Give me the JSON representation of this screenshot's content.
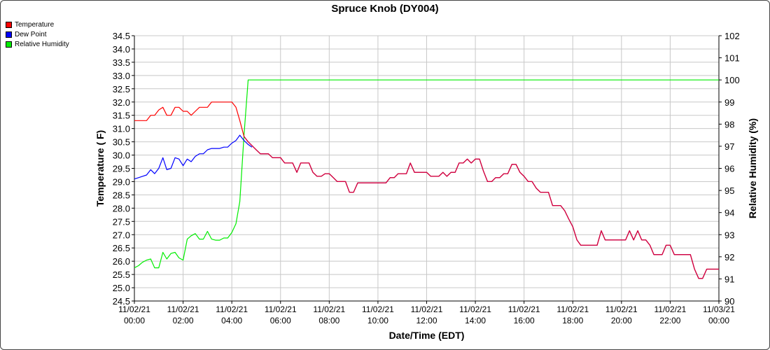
{
  "chart_data": {
    "type": "line",
    "title": "Spruce Knob (DY004)",
    "xlabel": "Date/Time (EDT)",
    "ylabel_left": "Temperature ( F)",
    "ylabel_right": "Relative Humidity (%)",
    "ylim_left": [
      24.5,
      34.5
    ],
    "ylim_right": [
      90,
      102
    ],
    "xlim_hours": [
      0,
      24
    ],
    "grid": true,
    "legend_position": "top-left",
    "x_ticks": [
      {
        "date": "11/02/21",
        "time": "00:00"
      },
      {
        "date": "11/02/21",
        "time": "02:00"
      },
      {
        "date": "11/02/21",
        "time": "04:00"
      },
      {
        "date": "11/02/21",
        "time": "06:00"
      },
      {
        "date": "11/02/21",
        "time": "08:00"
      },
      {
        "date": "11/02/21",
        "time": "10:00"
      },
      {
        "date": "11/02/21",
        "time": "12:00"
      },
      {
        "date": "11/02/21",
        "time": "14:00"
      },
      {
        "date": "11/02/21",
        "time": "16:00"
      },
      {
        "date": "11/02/21",
        "time": "18:00"
      },
      {
        "date": "11/02/21",
        "time": "20:00"
      },
      {
        "date": "11/02/21",
        "time": "22:00"
      },
      {
        "date": "11/03/21",
        "time": "00:00"
      }
    ],
    "y_ticks_left": [
      "24.5",
      "25.0",
      "25.5",
      "26.0",
      "26.5",
      "27.0",
      "27.5",
      "28.0",
      "28.5",
      "29.0",
      "29.5",
      "30.0",
      "30.5",
      "31.0",
      "31.5",
      "32.0",
      "32.5",
      "33.0",
      "33.5",
      "34.0",
      "34.5"
    ],
    "y_ticks_right": [
      "90",
      "91",
      "92",
      "93",
      "94",
      "95",
      "96",
      "97",
      "98",
      "99",
      "100",
      "101",
      "102"
    ],
    "series": [
      {
        "name": "Temperature",
        "color": "#ff0000",
        "axis": "left",
        "points": [
          [
            0.0,
            31.3
          ],
          [
            0.5,
            31.3
          ],
          [
            0.67,
            31.5
          ],
          [
            0.83,
            31.5
          ],
          [
            1.0,
            31.7
          ],
          [
            1.17,
            31.8
          ],
          [
            1.33,
            31.5
          ],
          [
            1.5,
            31.5
          ],
          [
            1.67,
            31.8
          ],
          [
            1.83,
            31.8
          ],
          [
            2.0,
            31.65
          ],
          [
            2.17,
            31.65
          ],
          [
            2.33,
            31.5
          ],
          [
            2.5,
            31.65
          ],
          [
            2.67,
            31.8
          ],
          [
            3.0,
            31.8
          ],
          [
            3.17,
            32.0
          ],
          [
            4.0,
            32.0
          ],
          [
            4.17,
            31.8
          ],
          [
            4.33,
            31.3
          ],
          [
            4.5,
            30.7
          ],
          [
            4.67,
            30.5
          ],
          [
            5.0,
            30.2
          ],
          [
            5.17,
            30.05
          ],
          [
            5.5,
            30.05
          ],
          [
            5.67,
            29.9
          ],
          [
            6.0,
            29.9
          ],
          [
            6.17,
            29.7
          ],
          [
            6.5,
            29.7
          ],
          [
            6.67,
            29.35
          ],
          [
            6.83,
            29.7
          ],
          [
            7.17,
            29.7
          ],
          [
            7.33,
            29.35
          ],
          [
            7.5,
            29.2
          ],
          [
            7.67,
            29.2
          ],
          [
            7.83,
            29.3
          ],
          [
            8.0,
            29.3
          ],
          [
            8.17,
            29.15
          ],
          [
            8.33,
            29.0
          ],
          [
            8.67,
            29.0
          ],
          [
            8.83,
            28.6
          ],
          [
            9.0,
            28.6
          ],
          [
            9.17,
            28.95
          ],
          [
            10.33,
            28.95
          ],
          [
            10.5,
            29.15
          ],
          [
            10.67,
            29.15
          ],
          [
            10.83,
            29.3
          ],
          [
            11.17,
            29.3
          ],
          [
            11.33,
            29.7
          ],
          [
            11.5,
            29.35
          ],
          [
            12.0,
            29.35
          ],
          [
            12.17,
            29.2
          ],
          [
            12.5,
            29.2
          ],
          [
            12.67,
            29.35
          ],
          [
            12.83,
            29.2
          ],
          [
            13.0,
            29.35
          ],
          [
            13.17,
            29.35
          ],
          [
            13.33,
            29.7
          ],
          [
            13.5,
            29.7
          ],
          [
            13.67,
            29.85
          ],
          [
            13.83,
            29.7
          ],
          [
            14.0,
            29.85
          ],
          [
            14.17,
            29.85
          ],
          [
            14.33,
            29.4
          ],
          [
            14.5,
            29.0
          ],
          [
            14.67,
            29.0
          ],
          [
            14.83,
            29.15
          ],
          [
            15.0,
            29.15
          ],
          [
            15.17,
            29.3
          ],
          [
            15.33,
            29.3
          ],
          [
            15.5,
            29.65
          ],
          [
            15.67,
            29.65
          ],
          [
            15.83,
            29.35
          ],
          [
            16.0,
            29.2
          ],
          [
            16.17,
            29.0
          ],
          [
            16.33,
            29.0
          ],
          [
            16.5,
            28.75
          ],
          [
            16.67,
            28.6
          ],
          [
            17.0,
            28.6
          ],
          [
            17.17,
            28.1
          ],
          [
            17.5,
            28.1
          ],
          [
            17.67,
            27.9
          ],
          [
            17.83,
            27.6
          ],
          [
            18.0,
            27.3
          ],
          [
            18.17,
            26.8
          ],
          [
            18.33,
            26.6
          ],
          [
            19.0,
            26.6
          ],
          [
            19.17,
            27.15
          ],
          [
            19.33,
            26.8
          ],
          [
            20.17,
            26.8
          ],
          [
            20.33,
            27.15
          ],
          [
            20.5,
            26.8
          ],
          [
            20.67,
            27.15
          ],
          [
            20.83,
            26.8
          ],
          [
            21.0,
            26.8
          ],
          [
            21.17,
            26.6
          ],
          [
            21.33,
            26.25
          ],
          [
            21.67,
            26.25
          ],
          [
            21.83,
            26.6
          ],
          [
            22.0,
            26.6
          ],
          [
            22.17,
            26.25
          ],
          [
            22.83,
            26.25
          ],
          [
            23.0,
            25.7
          ],
          [
            23.17,
            25.35
          ],
          [
            23.33,
            25.35
          ],
          [
            23.5,
            25.7
          ],
          [
            24.0,
            25.7
          ]
        ]
      },
      {
        "name": "Dew Point",
        "color": "#0000ff",
        "axis": "left",
        "points": [
          [
            0.0,
            29.1
          ],
          [
            0.17,
            29.15
          ],
          [
            0.33,
            29.2
          ],
          [
            0.5,
            29.25
          ],
          [
            0.67,
            29.45
          ],
          [
            0.83,
            29.3
          ],
          [
            1.0,
            29.5
          ],
          [
            1.17,
            29.9
          ],
          [
            1.33,
            29.45
          ],
          [
            1.5,
            29.5
          ],
          [
            1.67,
            29.9
          ],
          [
            1.83,
            29.85
          ],
          [
            2.0,
            29.6
          ],
          [
            2.17,
            29.85
          ],
          [
            2.33,
            29.75
          ],
          [
            2.5,
            29.95
          ],
          [
            2.67,
            30.05
          ],
          [
            2.83,
            30.05
          ],
          [
            3.0,
            30.2
          ],
          [
            3.17,
            30.25
          ],
          [
            3.5,
            30.25
          ],
          [
            3.67,
            30.3
          ],
          [
            3.83,
            30.3
          ],
          [
            4.0,
            30.45
          ],
          [
            4.17,
            30.55
          ],
          [
            4.33,
            30.75
          ],
          [
            4.5,
            30.55
          ],
          [
            4.67,
            30.4
          ],
          [
            4.83,
            30.3
          ]
        ]
      },
      {
        "name": "Relative Humidity",
        "color": "#00ee00",
        "axis": "right",
        "points": [
          [
            0.0,
            91.5
          ],
          [
            0.17,
            91.6
          ],
          [
            0.33,
            91.75
          ],
          [
            0.5,
            91.85
          ],
          [
            0.67,
            91.9
          ],
          [
            0.83,
            91.5
          ],
          [
            1.0,
            91.5
          ],
          [
            1.17,
            92.2
          ],
          [
            1.33,
            91.9
          ],
          [
            1.5,
            92.15
          ],
          [
            1.67,
            92.2
          ],
          [
            1.83,
            91.95
          ],
          [
            2.0,
            91.85
          ],
          [
            2.17,
            92.8
          ],
          [
            2.33,
            92.95
          ],
          [
            2.5,
            93.05
          ],
          [
            2.67,
            92.8
          ],
          [
            2.83,
            92.8
          ],
          [
            3.0,
            93.15
          ],
          [
            3.17,
            92.8
          ],
          [
            3.33,
            92.75
          ],
          [
            3.5,
            92.75
          ],
          [
            3.67,
            92.85
          ],
          [
            3.83,
            92.85
          ],
          [
            4.0,
            93.1
          ],
          [
            4.17,
            93.5
          ],
          [
            4.33,
            94.5
          ],
          [
            4.5,
            97.5
          ],
          [
            4.67,
            100.0
          ],
          [
            24.0,
            100.0
          ]
        ]
      }
    ]
  }
}
